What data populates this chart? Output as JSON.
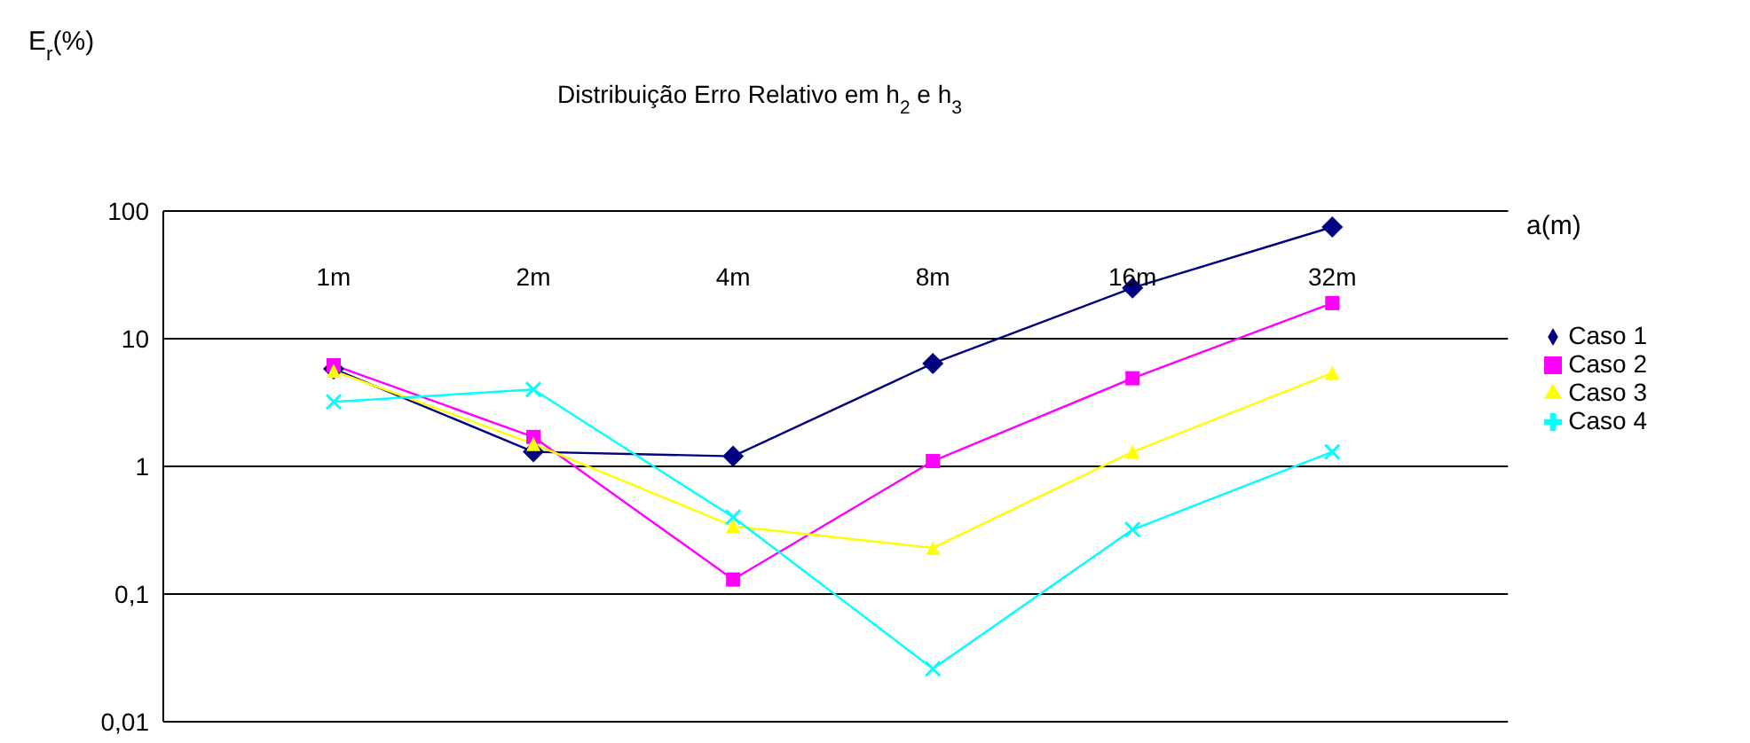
{
  "chart_data": {
    "type": "line",
    "title": "Distribuição  Erro Relativo em h$_{2}$ e h$_{3}$",
    "ylabel": "E$_{r}$(%)",
    "xlabel": "a(m)",
    "categories": [
      "1m",
      "2m",
      "4m",
      "8m",
      "16m",
      "32m"
    ],
    "series": [
      {
        "name": "Caso 1",
        "color": "#000080",
        "marker": "diamond",
        "values": [
          5.8,
          1.3,
          1.2,
          6.4,
          25,
          75
        ]
      },
      {
        "name": "Caso 2",
        "color": "#ff00ff",
        "marker": "square",
        "values": [
          6.2,
          1.7,
          0.13,
          1.1,
          4.9,
          19
        ]
      },
      {
        "name": "Caso 3",
        "color": "#ffff00",
        "marker": "triangle",
        "values": [
          5.6,
          1.5,
          0.34,
          0.23,
          1.3,
          5.4
        ]
      },
      {
        "name": "Caso 4",
        "color": "#00ffff",
        "marker": "cross",
        "values": [
          3.2,
          4,
          0.4,
          0.026,
          0.32,
          1.3
        ]
      }
    ],
    "log": "y",
    "ylim": [
      0.01,
      100
    ],
    "yticks": [
      {
        "value": 0.01,
        "label": "0,01"
      },
      {
        "value": 0.1,
        "label": "0,1"
      },
      1,
      10,
      100
    ],
    "grid": "y",
    "legend": "right"
  }
}
